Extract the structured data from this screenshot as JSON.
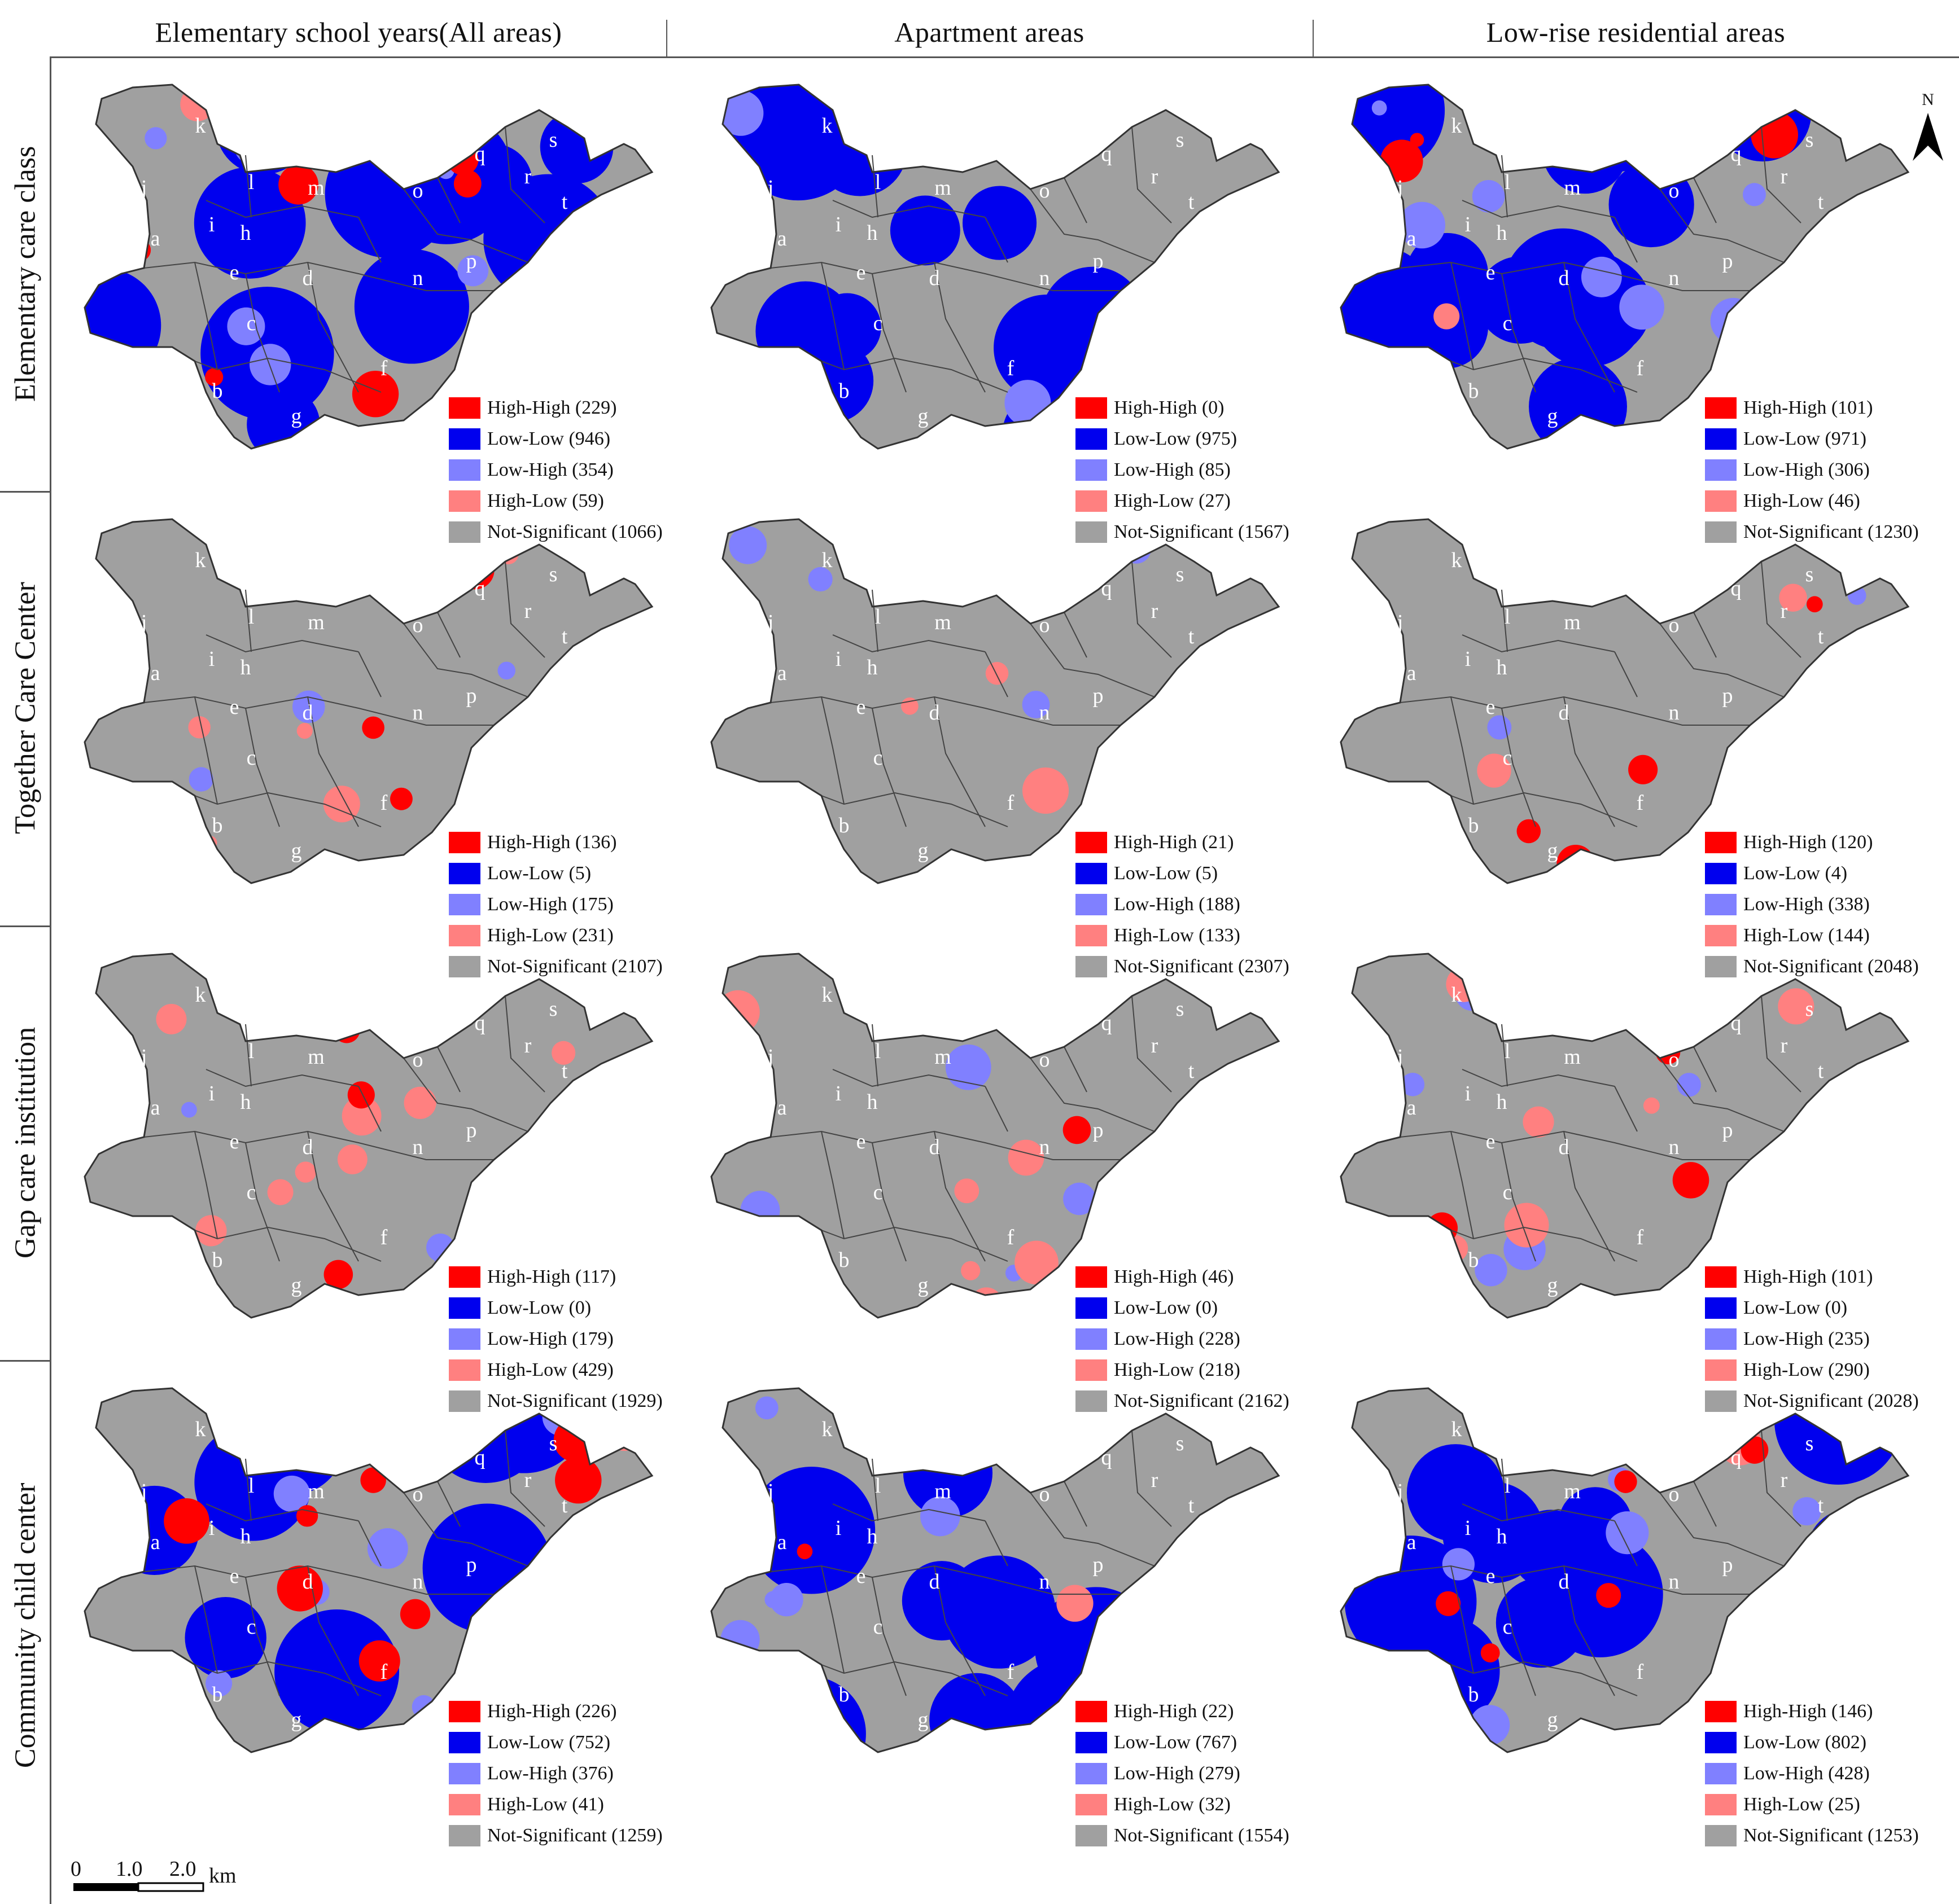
{
  "columns": [
    "Elementary school years(All areas)",
    "Apartment areas",
    "Low-rise residential areas"
  ],
  "rows": [
    "Elementary care class",
    "Together Care Center",
    "Gap care institution",
    "Community child center"
  ],
  "colors": {
    "high_high": "#ff0000",
    "low_low": "#0000ee",
    "low_high": "#8080ff",
    "high_low": "#ff8080",
    "not_significant": "#a0a0a0"
  },
  "legend_categories": [
    "High-High",
    "Low-Low",
    "Low-High",
    "High-Low",
    "Not-Significant"
  ],
  "panels": [
    [
      {
        "items": [
          "High-High (229)",
          "Low-Low (946)",
          "Low-High (354)",
          "High-Low (59)",
          "Not-Significant (1066)"
        ]
      },
      {
        "items": [
          "High-High (0)",
          "Low-Low (975)",
          "Low-High (85)",
          "High-Low (27)",
          "Not-Significant (1567)"
        ]
      },
      {
        "items": [
          "High-High (101)",
          "Low-Low (971)",
          "Low-High (306)",
          "High-Low (46)",
          "Not-Significant (1230)"
        ]
      }
    ],
    [
      {
        "items": [
          "High-High (136)",
          "Low-Low (5)",
          "Low-High (175)",
          "High-Low (231)",
          "Not-Significant (2107)"
        ]
      },
      {
        "items": [
          "High-High (21)",
          "Low-Low (5)",
          "Low-High (188)",
          "High-Low (133)",
          "Not-Significant (2307)"
        ]
      },
      {
        "items": [
          "High-High (120)",
          "Low-Low (4)",
          "Low-High (338)",
          "High-Low (144)",
          "Not-Significant (2048)"
        ]
      }
    ],
    [
      {
        "items": [
          "High-High (117)",
          "Low-Low (0)",
          "Low-High (179)",
          "High-Low (429)",
          "Not-Significant (1929)"
        ]
      },
      {
        "items": [
          "High-High (46)",
          "Low-Low (0)",
          "Low-High (228)",
          "High-Low (218)",
          "Not-Significant (2162)"
        ]
      },
      {
        "items": [
          "High-High (101)",
          "Low-Low (0)",
          "Low-High (235)",
          "High-Low (290)",
          "Not-Significant (2028)"
        ]
      }
    ],
    [
      {
        "items": [
          "High-High (226)",
          "Low-Low (752)",
          "Low-High (376)",
          "High-Low (41)",
          "Not-Significant (1259)"
        ]
      },
      {
        "items": [
          "High-High (22)",
          "Low-Low (767)",
          "Low-High (279)",
          "High-Low (32)",
          "Not-Significant (1554)"
        ]
      },
      {
        "items": [
          "High-High (146)",
          "Low-Low (802)",
          "Low-High (428)",
          "High-Low (25)",
          "Not-Significant (1253)"
        ]
      }
    ]
  ],
  "district_letters": [
    "a",
    "b",
    "c",
    "d",
    "e",
    "f",
    "g",
    "h",
    "i",
    "j",
    "k",
    "l",
    "m",
    "n",
    "o",
    "p",
    "q",
    "r",
    "s",
    "t"
  ],
  "north_arrow": "N",
  "scale_bar": {
    "ticks": [
      "0",
      "1.0",
      "2.0"
    ],
    "unit": "km"
  }
}
